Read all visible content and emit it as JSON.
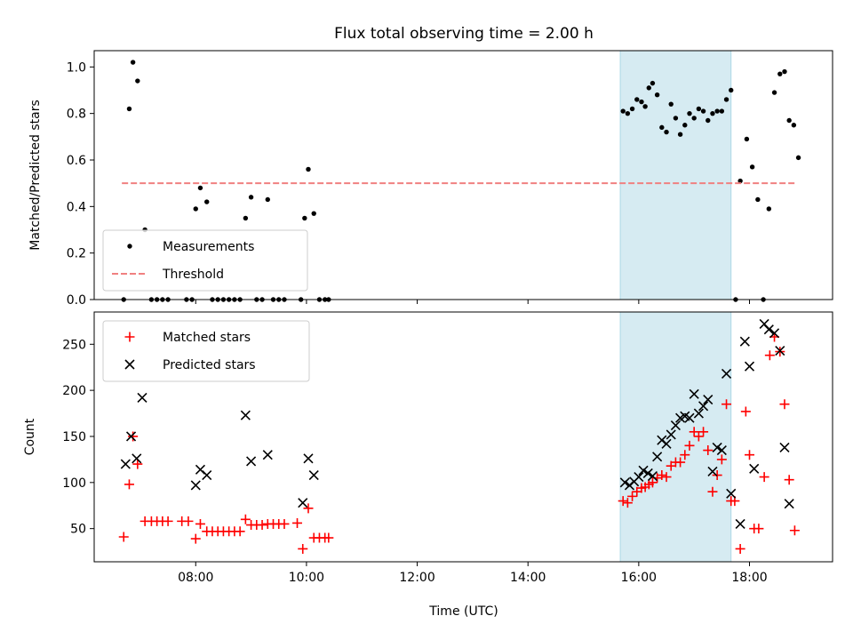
{
  "title": "Flux total observing time = 2.00 h",
  "xlabel": "Time (UTC)",
  "x_ticks": [
    "08:00",
    "10:00",
    "12:00",
    "14:00",
    "16:00",
    "18:00"
  ],
  "highlight": {
    "start": "15:40",
    "end": "17:40",
    "color": "#add8e6"
  },
  "colors": {
    "measurement": "#000000",
    "threshold": "#f08080",
    "matched": "#ff0000",
    "predicted": "#000000"
  },
  "chart_data": [
    {
      "type": "scatter",
      "ylabel": "Matched/Predicted stars",
      "xlim": [
        "06:10",
        "19:30"
      ],
      "ylim": [
        0,
        1.07
      ],
      "y_ticks": [
        "0.0",
        "0.2",
        "0.4",
        "0.6",
        "0.8",
        "1.0"
      ],
      "legend": "lower-left",
      "series": [
        {
          "name": "Measurements",
          "marker": "dot",
          "points": [
            [
              "06:42",
              0.0
            ],
            [
              "06:48",
              0.82
            ],
            [
              "06:52",
              1.02
            ],
            [
              "06:57",
              0.94
            ],
            [
              "07:05",
              0.3
            ],
            [
              "07:12",
              0.0
            ],
            [
              "07:18",
              0.0
            ],
            [
              "07:24",
              0.0
            ],
            [
              "07:30",
              0.0
            ],
            [
              "07:50",
              0.0
            ],
            [
              "07:56",
              0.0
            ],
            [
              "08:00",
              0.39
            ],
            [
              "08:05",
              0.48
            ],
            [
              "08:12",
              0.42
            ],
            [
              "08:18",
              0.0
            ],
            [
              "08:24",
              0.0
            ],
            [
              "08:30",
              0.0
            ],
            [
              "08:36",
              0.0
            ],
            [
              "08:42",
              0.0
            ],
            [
              "08:48",
              0.0
            ],
            [
              "08:54",
              0.35
            ],
            [
              "09:00",
              0.44
            ],
            [
              "09:06",
              0.0
            ],
            [
              "09:12",
              0.0
            ],
            [
              "09:18",
              0.43
            ],
            [
              "09:24",
              0.0
            ],
            [
              "09:30",
              0.0
            ],
            [
              "09:36",
              0.0
            ],
            [
              "09:54",
              0.0
            ],
            [
              "09:58",
              0.35
            ],
            [
              "10:02",
              0.56
            ],
            [
              "10:08",
              0.37
            ],
            [
              "10:14",
              0.0
            ],
            [
              "10:20",
              0.0
            ],
            [
              "10:24",
              0.0
            ],
            [
              "15:43",
              0.81
            ],
            [
              "15:48",
              0.8
            ],
            [
              "15:53",
              0.82
            ],
            [
              "15:58",
              0.86
            ],
            [
              "16:03",
              0.85
            ],
            [
              "16:07",
              0.83
            ],
            [
              "16:11",
              0.91
            ],
            [
              "16:15",
              0.93
            ],
            [
              "16:20",
              0.88
            ],
            [
              "16:25",
              0.74
            ],
            [
              "16:30",
              0.72
            ],
            [
              "16:35",
              0.84
            ],
            [
              "16:40",
              0.78
            ],
            [
              "16:45",
              0.71
            ],
            [
              "16:50",
              0.75
            ],
            [
              "16:55",
              0.8
            ],
            [
              "17:00",
              0.78
            ],
            [
              "17:05",
              0.82
            ],
            [
              "17:10",
              0.81
            ],
            [
              "17:15",
              0.77
            ],
            [
              "17:20",
              0.8
            ],
            [
              "17:25",
              0.81
            ],
            [
              "17:30",
              0.81
            ],
            [
              "17:35",
              0.86
            ],
            [
              "17:40",
              0.9
            ],
            [
              "17:45",
              0.0
            ],
            [
              "17:50",
              0.51
            ],
            [
              "17:57",
              0.69
            ],
            [
              "18:03",
              0.57
            ],
            [
              "18:09",
              0.43
            ],
            [
              "18:15",
              0.0
            ],
            [
              "18:21",
              0.39
            ],
            [
              "18:27",
              0.89
            ],
            [
              "18:33",
              0.97
            ],
            [
              "18:38",
              0.98
            ],
            [
              "18:43",
              0.77
            ],
            [
              "18:48",
              0.75
            ],
            [
              "18:53",
              0.61
            ]
          ]
        },
        {
          "name": "Threshold",
          "marker": "dashed-line",
          "points": [
            [
              "06:40",
              0.5
            ],
            [
              "18:50",
              0.5
            ]
          ]
        }
      ]
    },
    {
      "type": "scatter",
      "ylabel": "Count",
      "xlim": [
        "06:10",
        "19:30"
      ],
      "ylim": [
        14,
        285
      ],
      "y_ticks": [
        "50",
        "100",
        "150",
        "200",
        "250"
      ],
      "legend": "upper-left",
      "series": [
        {
          "name": "Matched stars",
          "marker": "plus",
          "points": [
            [
              "06:42",
              41
            ],
            [
              "06:48",
              98
            ],
            [
              "06:52",
              150
            ],
            [
              "06:57",
              120
            ],
            [
              "07:05",
              58
            ],
            [
              "07:12",
              58
            ],
            [
              "07:18",
              58
            ],
            [
              "07:24",
              58
            ],
            [
              "07:30",
              58
            ],
            [
              "07:45",
              58
            ],
            [
              "07:52",
              58
            ],
            [
              "08:00",
              39
            ],
            [
              "08:05",
              55
            ],
            [
              "08:12",
              47
            ],
            [
              "08:18",
              47
            ],
            [
              "08:24",
              47
            ],
            [
              "08:30",
              47
            ],
            [
              "08:36",
              47
            ],
            [
              "08:42",
              47
            ],
            [
              "08:48",
              47
            ],
            [
              "08:54",
              60
            ],
            [
              "09:00",
              54
            ],
            [
              "09:06",
              54
            ],
            [
              "09:12",
              54
            ],
            [
              "09:18",
              55
            ],
            [
              "09:24",
              55
            ],
            [
              "09:30",
              55
            ],
            [
              "09:36",
              55
            ],
            [
              "09:50",
              56
            ],
            [
              "09:56",
              28
            ],
            [
              "10:02",
              72
            ],
            [
              "10:08",
              40
            ],
            [
              "10:14",
              40
            ],
            [
              "10:20",
              40
            ],
            [
              "10:24",
              40
            ],
            [
              "15:43",
              80
            ],
            [
              "15:48",
              78
            ],
            [
              "15:53",
              85
            ],
            [
              "15:58",
              90
            ],
            [
              "16:03",
              94
            ],
            [
              "16:07",
              95
            ],
            [
              "16:11",
              98
            ],
            [
              "16:15",
              100
            ],
            [
              "16:20",
              105
            ],
            [
              "16:25",
              108
            ],
            [
              "16:30",
              106
            ],
            [
              "16:35",
              118
            ],
            [
              "16:40",
              122
            ],
            [
              "16:45",
              122
            ],
            [
              "16:50",
              130
            ],
            [
              "16:55",
              140
            ],
            [
              "17:00",
              155
            ],
            [
              "17:05",
              150
            ],
            [
              "17:10",
              155
            ],
            [
              "17:15",
              135
            ],
            [
              "17:20",
              90
            ],
            [
              "17:25",
              108
            ],
            [
              "17:30",
              125
            ],
            [
              "17:35",
              185
            ],
            [
              "17:40",
              80
            ],
            [
              "17:44",
              80
            ],
            [
              "17:50",
              28
            ],
            [
              "17:56",
              177
            ],
            [
              "18:00",
              130
            ],
            [
              "18:05",
              50
            ],
            [
              "18:10",
              50
            ],
            [
              "18:16",
              106
            ],
            [
              "18:22",
              238
            ],
            [
              "18:27",
              258
            ],
            [
              "18:33",
              242
            ],
            [
              "18:38",
              185
            ],
            [
              "18:43",
              103
            ],
            [
              "18:49",
              48
            ]
          ]
        },
        {
          "name": "Predicted stars",
          "marker": "x",
          "points": [
            [
              "06:44",
              120
            ],
            [
              "06:50",
              150
            ],
            [
              "06:56",
              126
            ],
            [
              "07:02",
              192
            ],
            [
              "08:00",
              97
            ],
            [
              "08:05",
              114
            ],
            [
              "08:12",
              108
            ],
            [
              "08:54",
              173
            ],
            [
              "09:00",
              123
            ],
            [
              "09:18",
              130
            ],
            [
              "09:56",
              78
            ],
            [
              "10:02",
              126
            ],
            [
              "10:08",
              108
            ],
            [
              "15:45",
              100
            ],
            [
              "15:50",
              97
            ],
            [
              "15:55",
              101
            ],
            [
              "16:00",
              106
            ],
            [
              "16:05",
              113
            ],
            [
              "16:10",
              110
            ],
            [
              "16:15",
              107
            ],
            [
              "16:20",
              128
            ],
            [
              "16:25",
              146
            ],
            [
              "16:30",
              142
            ],
            [
              "16:35",
              152
            ],
            [
              "16:40",
              162
            ],
            [
              "16:45",
              170
            ],
            [
              "16:50",
              172
            ],
            [
              "16:55",
              170
            ],
            [
              "17:00",
              196
            ],
            [
              "17:05",
              175
            ],
            [
              "17:10",
              183
            ],
            [
              "17:15",
              190
            ],
            [
              "17:20",
              112
            ],
            [
              "17:25",
              138
            ],
            [
              "17:30",
              135
            ],
            [
              "17:35",
              218
            ],
            [
              "17:40",
              88
            ],
            [
              "17:50",
              55
            ],
            [
              "17:55",
              253
            ],
            [
              "18:00",
              226
            ],
            [
              "18:05",
              115
            ],
            [
              "18:16",
              272
            ],
            [
              "18:21",
              266
            ],
            [
              "18:27",
              262
            ],
            [
              "18:33",
              243
            ],
            [
              "18:38",
              138
            ],
            [
              "18:43",
              77
            ]
          ]
        }
      ]
    }
  ]
}
